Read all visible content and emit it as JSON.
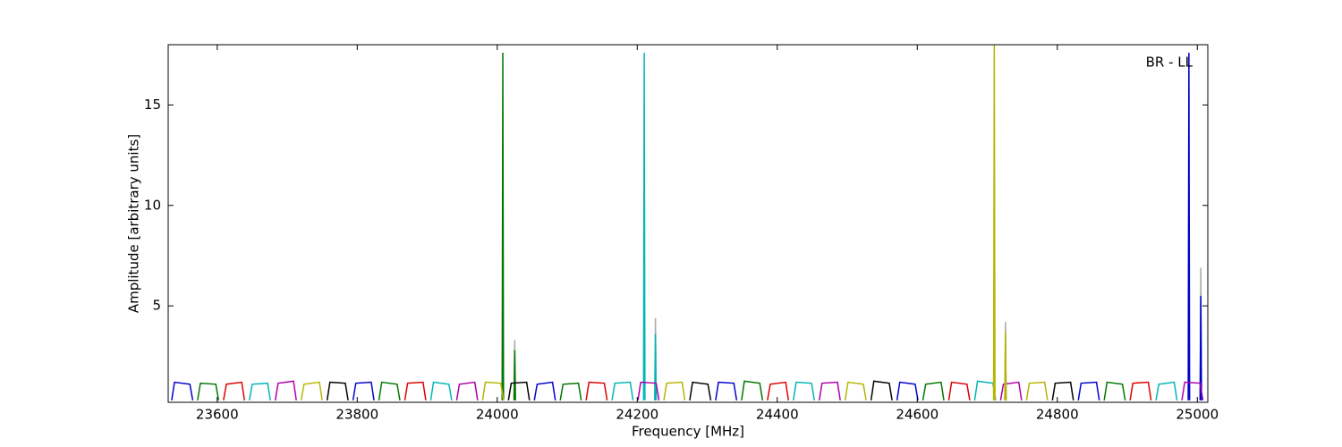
{
  "chart_data": {
    "type": "line",
    "xlabel": "Frequency [MHz]",
    "ylabel": "Amplitude [arbitrary units]",
    "annotation": "BR - LL",
    "xlim": [
      23530,
      25015
    ],
    "ylim": [
      0.2,
      18
    ],
    "xticks": [
      23600,
      23800,
      24000,
      24200,
      24400,
      24600,
      24800,
      25000
    ],
    "yticks": [
      5,
      10,
      15
    ],
    "series": [
      {
        "color": "#aaaaaa",
        "x": [
          24024,
          24025,
          24026,
          null,
          24225,
          24226,
          24227,
          null,
          24725,
          24726,
          24727,
          null,
          25004,
          25005,
          25006
        ],
        "values": [
          0.3,
          3.3,
          0.3,
          null,
          0.3,
          4.4,
          0.3,
          null,
          0.3,
          4.2,
          0.3,
          null,
          0.3,
          6.9,
          0.3
        ]
      },
      {
        "color": "#0000cc",
        "x": [
          23535,
          23539,
          23561,
          23565,
          null,
          23794,
          23798,
          23820,
          23824,
          null,
          24053,
          24057,
          24079,
          24083,
          null,
          24312,
          24316,
          24338,
          24342,
          null,
          24571,
          24575,
          24597,
          24601,
          null,
          24830,
          24834,
          24856,
          24860,
          null,
          24987,
          24988,
          24989,
          null,
          25004,
          25005,
          25006
        ],
        "values": [
          0.3,
          1.2,
          1.1,
          0.3,
          null,
          0.3,
          1.15,
          1.2,
          0.3,
          null,
          0.3,
          1.1,
          1.2,
          0.3,
          null,
          0.3,
          1.2,
          1.15,
          0.3,
          null,
          0.3,
          1.2,
          1.1,
          0.3,
          null,
          0.3,
          1.15,
          1.2,
          0.3,
          null,
          0.3,
          17.6,
          0.3,
          null,
          0.3,
          5.5,
          0.3
        ]
      },
      {
        "color": "#007700",
        "x": [
          23572,
          23576,
          23598,
          23602,
          null,
          23831,
          23835,
          23857,
          23861,
          null,
          24090,
          24094,
          24116,
          24120,
          null,
          24349,
          24353,
          24375,
          24379,
          null,
          24608,
          24612,
          24634,
          24638,
          null,
          24867,
          24871,
          24893,
          24897,
          null,
          24007,
          24008,
          24009,
          null,
          24024,
          24025,
          24026
        ],
        "values": [
          0.3,
          1.15,
          1.1,
          0.3,
          null,
          0.3,
          1.2,
          1.1,
          0.3,
          null,
          0.3,
          1.1,
          1.15,
          0.3,
          null,
          0.3,
          1.25,
          1.15,
          0.3,
          null,
          0.3,
          1.1,
          1.2,
          0.3,
          null,
          0.3,
          1.2,
          1.1,
          0.3,
          null,
          0.3,
          17.6,
          0.3,
          null,
          0.3,
          2.8,
          0.3
        ]
      },
      {
        "color": "#dd0000",
        "x": [
          23609,
          23613,
          23635,
          23639,
          null,
          23868,
          23872,
          23894,
          23898,
          null,
          24127,
          24131,
          24153,
          24157,
          null,
          24386,
          24390,
          24412,
          24416,
          null,
          24645,
          24649,
          24671,
          24675,
          null,
          24904,
          24908,
          24930,
          24934
        ],
        "values": [
          0.3,
          1.1,
          1.2,
          0.3,
          null,
          0.3,
          1.15,
          1.2,
          0.3,
          null,
          0.3,
          1.2,
          1.15,
          0.3,
          null,
          0.3,
          1.1,
          1.2,
          0.3,
          null,
          0.3,
          1.2,
          1.1,
          0.3,
          null,
          0.3,
          1.15,
          1.2,
          0.3
        ]
      },
      {
        "color": "#00b5b5",
        "x": [
          23646,
          23650,
          23672,
          23676,
          null,
          23905,
          23909,
          23931,
          23935,
          null,
          24164,
          24168,
          24190,
          24194,
          null,
          24423,
          24427,
          24449,
          24453,
          null,
          24682,
          24686,
          24708,
          24712,
          null,
          24941,
          24945,
          24967,
          24971,
          null,
          24209,
          24210,
          24211,
          null,
          24225,
          24226,
          24227
        ],
        "values": [
          0.3,
          1.1,
          1.15,
          0.3,
          null,
          0.3,
          1.2,
          1.1,
          0.3,
          null,
          0.3,
          1.15,
          1.2,
          0.3,
          null,
          0.3,
          1.2,
          1.15,
          0.3,
          null,
          0.3,
          1.25,
          1.15,
          0.3,
          null,
          0.3,
          1.1,
          1.2,
          0.3,
          null,
          0.3,
          17.6,
          0.3,
          null,
          0.3,
          3.6,
          0.3
        ]
      },
      {
        "color": "#aa00aa",
        "x": [
          23683,
          23687,
          23709,
          23713,
          null,
          23942,
          23946,
          23968,
          23972,
          null,
          24201,
          24205,
          24227,
          24231,
          null,
          24460,
          24464,
          24486,
          24490,
          null,
          24719,
          24723,
          24745,
          24749,
          null,
          24978,
          24982,
          25004,
          25008
        ],
        "values": [
          0.3,
          1.15,
          1.25,
          0.3,
          null,
          0.3,
          1.1,
          1.2,
          0.3,
          null,
          0.3,
          1.2,
          1.15,
          0.3,
          null,
          0.3,
          1.15,
          1.2,
          0.3,
          null,
          0.3,
          1.1,
          1.2,
          0.3,
          null,
          0.3,
          1.2,
          1.15,
          0.3
        ]
      },
      {
        "color": "#b5b500",
        "x": [
          23720,
          23724,
          23746,
          23750,
          null,
          23979,
          23983,
          24005,
          24009,
          null,
          24238,
          24242,
          24264,
          24268,
          null,
          24497,
          24501,
          24523,
          24527,
          null,
          24756,
          24760,
          24782,
          24786,
          null,
          24709,
          24710,
          24711,
          null,
          24725,
          24726,
          24727
        ],
        "values": [
          0.3,
          1.1,
          1.2,
          0.3,
          null,
          0.3,
          1.2,
          1.15,
          0.3,
          null,
          0.3,
          1.15,
          1.2,
          0.3,
          null,
          0.3,
          1.2,
          1.1,
          0.3,
          null,
          0.3,
          1.15,
          1.2,
          0.3,
          null,
          0.3,
          18,
          0.3,
          null,
          0.3,
          3.7,
          0.3
        ]
      },
      {
        "color": "#000000",
        "x": [
          23757,
          23761,
          23783,
          23787,
          null,
          24016,
          24020,
          24042,
          24046,
          null,
          24275,
          24279,
          24301,
          24305,
          null,
          24534,
          24538,
          24560,
          24564,
          null,
          24793,
          24797,
          24819,
          24823
        ],
        "values": [
          0.3,
          1.2,
          1.15,
          0.3,
          null,
          0.3,
          1.15,
          1.2,
          0.3,
          null,
          0.3,
          1.2,
          1.1,
          0.3,
          null,
          0.3,
          1.25,
          1.15,
          0.3,
          null,
          0.3,
          1.15,
          1.2,
          0.3
        ]
      }
    ]
  }
}
